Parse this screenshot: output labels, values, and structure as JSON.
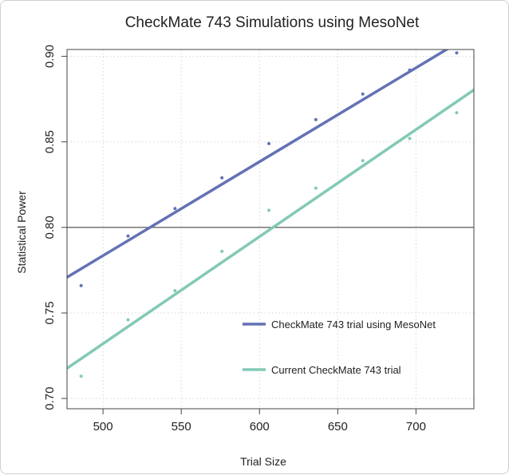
{
  "chart_data": {
    "type": "scatter",
    "title": "CheckMate 743 Simulations using MesoNet",
    "xlabel": "Trial Size",
    "ylabel": "Statistical Power",
    "xlim": [
      477,
      737
    ],
    "ylim": [
      0.694,
      0.904
    ],
    "xticks": [
      500,
      550,
      600,
      650,
      700
    ],
    "yticks": [
      0.7,
      0.75,
      0.8,
      0.85,
      0.9
    ],
    "xtick_labels": [
      "500",
      "550",
      "600",
      "650",
      "700"
    ],
    "ytick_labels": [
      "0.70",
      "0.75",
      "0.80",
      "0.85",
      "0.90"
    ],
    "grid": true,
    "reference_line": {
      "y": 0.8
    },
    "legend_position": "bottom-right",
    "series": [
      {
        "name": "CheckMate 743 trial using MesoNet",
        "color": "#6372b4",
        "x": [
          486,
          516,
          546,
          576,
          606,
          636,
          666,
          696,
          726
        ],
        "y": [
          0.766,
          0.795,
          0.811,
          0.829,
          0.849,
          0.863,
          0.878,
          0.892,
          0.902
        ],
        "fit": [
          0.000549,
          0.509
        ]
      },
      {
        "name": "Current CheckMate 743 trial",
        "color": "#82c9b6",
        "x": [
          486,
          516,
          546,
          576,
          606,
          636,
          666,
          696,
          726
        ],
        "y": [
          0.713,
          0.746,
          0.763,
          0.786,
          0.81,
          0.823,
          0.839,
          0.852,
          0.867
        ],
        "fit": [
          0.000626,
          0.419
        ]
      }
    ]
  }
}
